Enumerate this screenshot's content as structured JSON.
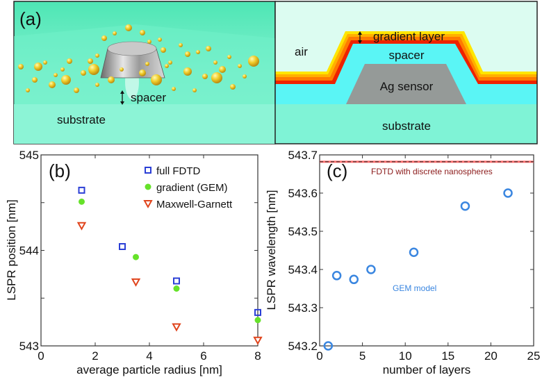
{
  "panel_a": {
    "label": "(a)",
    "render": {
      "spacer_label": "spacer",
      "substrate_label": "substrate"
    },
    "schematic": {
      "air_label": "air",
      "gradient_label": "gradient layer",
      "spacer_label": "spacer",
      "sensor_label": "Ag sensor",
      "substrate_label": "substrate"
    }
  },
  "chart_data": [
    {
      "type": "scatter",
      "panel_label": "(b)",
      "xlabel": "average particle radius [nm]",
      "ylabel": "LSPR position [nm]",
      "xlim": [
        0,
        8
      ],
      "ylim": [
        543,
        545
      ],
      "xticks": [
        "0",
        "2",
        "4",
        "6",
        "8"
      ],
      "yticks": [
        "543",
        "544",
        "545"
      ],
      "legend_position": "top-right",
      "series": [
        {
          "name": "full FDTD",
          "marker": "square",
          "color": "#2b3fd6",
          "x": [
            1.5,
            3,
            5,
            8
          ],
          "y": [
            544.63,
            544.04,
            543.68,
            543.35
          ]
        },
        {
          "name": "gradient (GEM)",
          "marker": "circle",
          "color": "#66e22a",
          "x": [
            1.5,
            3.5,
            5,
            8
          ],
          "y": [
            544.51,
            543.93,
            543.6,
            543.27
          ]
        },
        {
          "name": "Maxwell-Garnett",
          "marker": "triangle-down",
          "color": "#e0441c",
          "x": [
            1.5,
            3.5,
            5,
            8
          ],
          "y": [
            544.26,
            543.67,
            543.2,
            543.06
          ]
        }
      ]
    },
    {
      "type": "scatter",
      "panel_label": "(c)",
      "xlabel": "number of layers",
      "ylabel": "LSPR wavelength [nm]",
      "xlim": [
        0,
        25
      ],
      "ylim": [
        543.2,
        543.7
      ],
      "xticks": [
        "0",
        "5",
        "10",
        "15",
        "20",
        "25"
      ],
      "yticks": [
        "543.2",
        "543.3",
        "543.4",
        "543.5",
        "543.6",
        "543.7"
      ],
      "series": [
        {
          "name": "GEM model",
          "marker": "open-circle",
          "color": "#3a86e0",
          "x": [
            1,
            2,
            4,
            6,
            11,
            17,
            22
          ],
          "y": [
            543.2,
            543.384,
            543.374,
            543.4,
            543.445,
            543.566,
            543.6
          ]
        }
      ],
      "reference_line": {
        "name": "FDTD with discrete nanospheres",
        "y": 543.682,
        "color": "#8b1a1a"
      }
    }
  ]
}
